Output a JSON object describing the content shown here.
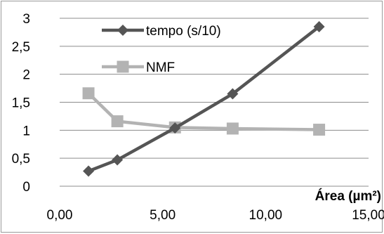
{
  "chart_data": {
    "type": "line",
    "title": "",
    "xlabel": "Área (µm²)",
    "ylabel": "",
    "xlim": [
      0,
      15
    ],
    "ylim": [
      0,
      3
    ],
    "x_ticks": [
      "0,00",
      "5,00",
      "10,00",
      "15,00"
    ],
    "y_ticks": [
      "0",
      "0,5",
      "1",
      "1,5",
      "2",
      "2,5",
      "3"
    ],
    "grid": "horizontal",
    "legend_position": "top-center",
    "series": [
      {
        "name": "tempo (s/10)",
        "marker": "diamond",
        "color": "#555555",
        "x": [
          1.4,
          2.8,
          5.6,
          8.4,
          12.6
        ],
        "y": [
          0.27,
          0.47,
          1.04,
          1.65,
          2.85
        ]
      },
      {
        "name": "NMF",
        "marker": "square",
        "color": "#b3b3b3",
        "x": [
          1.4,
          2.8,
          5.6,
          8.4,
          12.6
        ],
        "y": [
          1.66,
          1.16,
          1.05,
          1.03,
          1.01
        ]
      }
    ]
  }
}
